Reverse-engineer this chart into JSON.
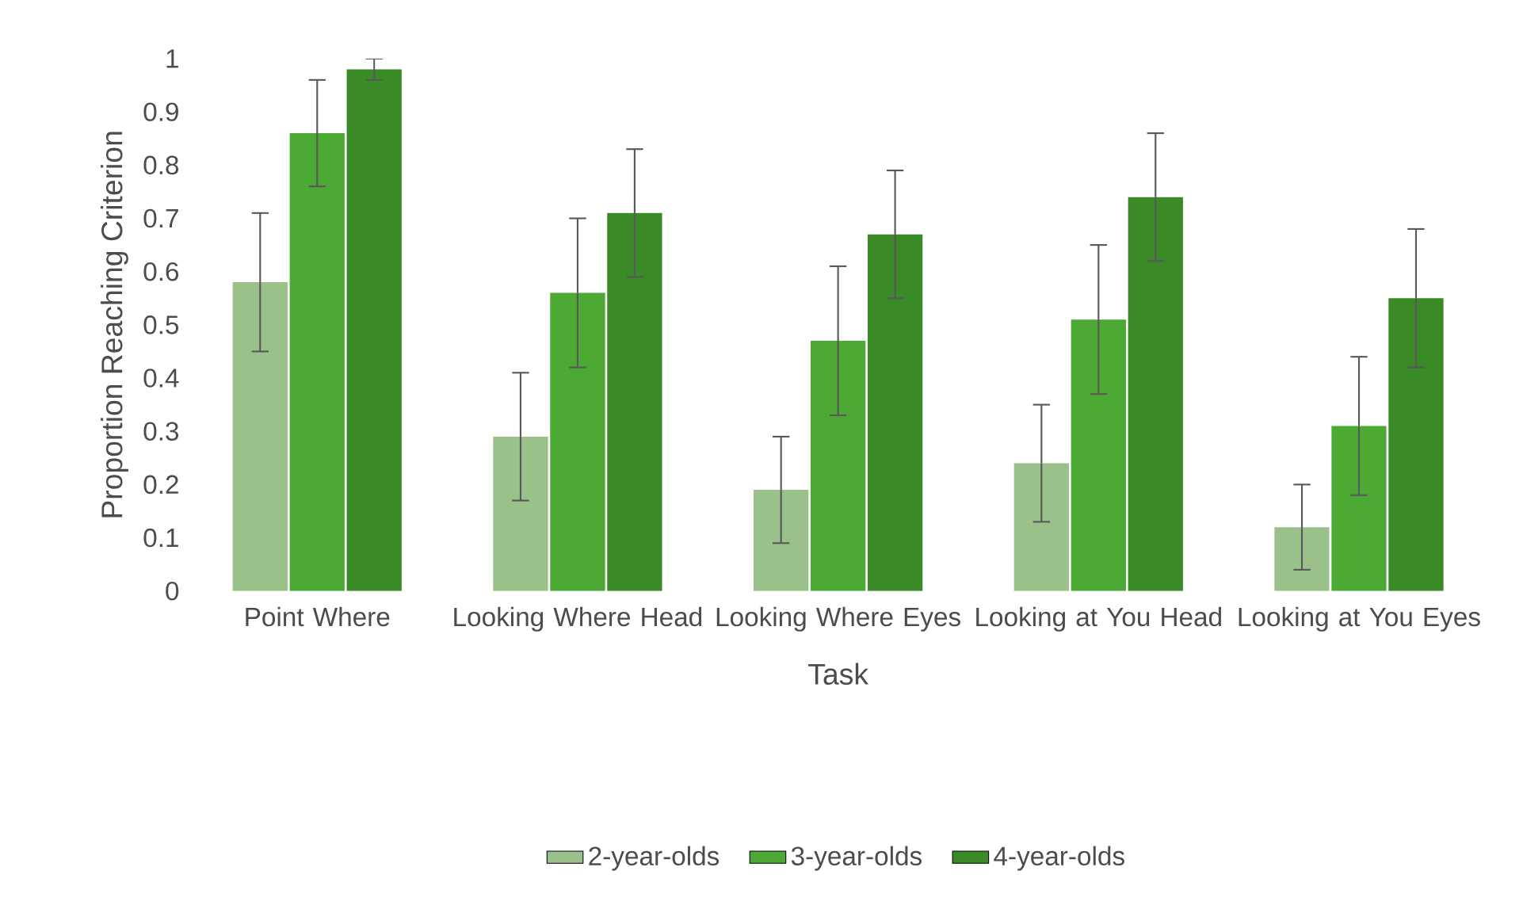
{
  "chart_data": {
    "type": "bar",
    "xlabel": "Task",
    "ylabel": "Proportion Reaching Criterion",
    "categories": [
      "Point Where",
      "Looking Where Head",
      "Looking Where Eyes",
      "Looking at You Head",
      "Looking at You Eyes"
    ],
    "series": [
      {
        "name": "2-year-olds",
        "color": "#9bc18b",
        "values": [
          0.58,
          0.29,
          0.19,
          0.24,
          0.12
        ],
        "errors": [
          0.13,
          0.12,
          0.1,
          0.11,
          0.08
        ]
      },
      {
        "name": "3-year-olds",
        "color": "#4caa34",
        "values": [
          0.86,
          0.56,
          0.47,
          0.51,
          0.31
        ],
        "errors": [
          0.1,
          0.14,
          0.14,
          0.14,
          0.13
        ]
      },
      {
        "name": "4-year-olds",
        "color": "#3a8a28",
        "values": [
          0.98,
          0.71,
          0.67,
          0.74,
          0.55
        ],
        "errors": [
          0.02,
          0.12,
          0.12,
          0.12,
          0.13
        ]
      }
    ],
    "ylim": [
      0,
      1
    ],
    "yticks": [
      0,
      0.1,
      0.2,
      0.3,
      0.4,
      0.5,
      0.6,
      0.7,
      0.8,
      0.9,
      1
    ],
    "legend": "bottom",
    "grid": false
  }
}
